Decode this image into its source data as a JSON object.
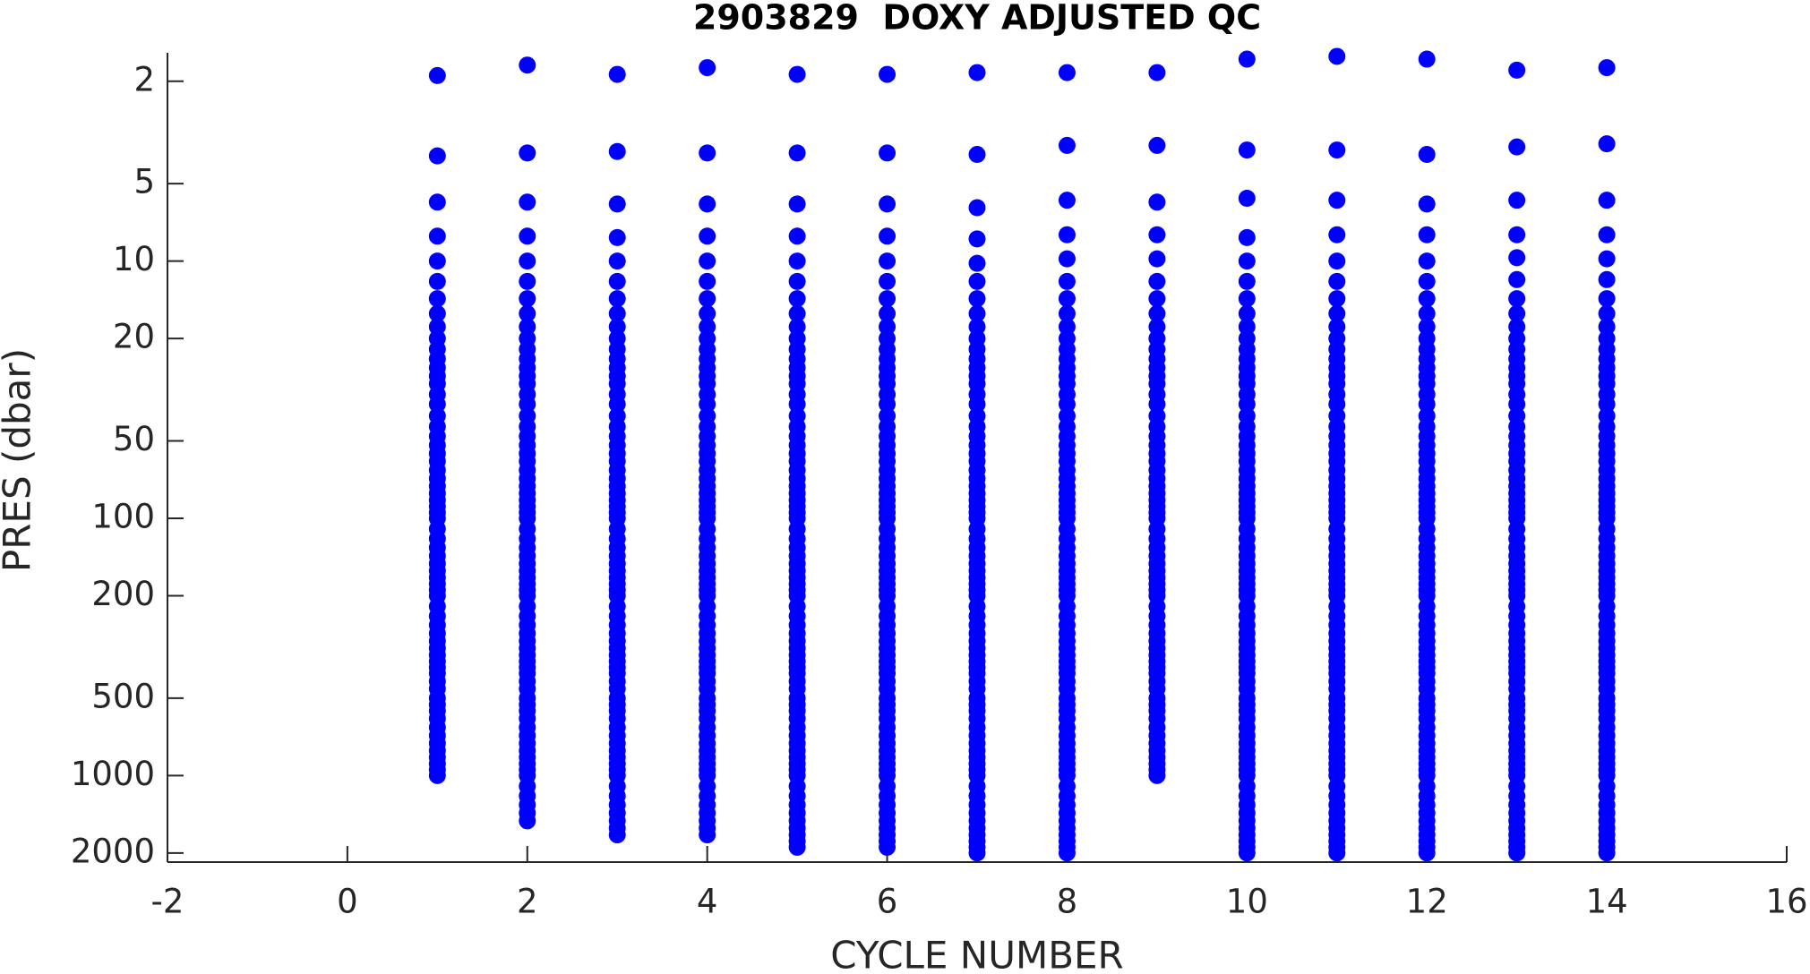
{
  "chart_data": {
    "type": "scatter",
    "title": "2903829  DOXY ADJUSTED QC",
    "x_label": "CYCLE NUMBER",
    "y_label": "PRES (dbar)",
    "color": "#0000ff",
    "xlim": [
      -2,
      16
    ],
    "xticks": [
      -2,
      0,
      2,
      4,
      6,
      8,
      10,
      12,
      14,
      16
    ],
    "ylim": [
      1.55,
      2170
    ],
    "yticks": [
      2,
      5,
      10,
      20,
      50,
      100,
      200,
      500,
      1000,
      2000
    ],
    "y_log": true,
    "y_reversed": true,
    "series": [
      {
        "cycle": 1,
        "values": [
          1.9,
          3.9,
          5.9,
          8,
          10,
          12,
          14,
          16,
          18,
          20,
          22,
          24,
          26,
          28,
          30,
          33,
          36,
          40,
          44,
          48,
          52,
          56,
          60,
          65,
          70,
          75,
          80,
          85,
          90,
          95,
          100,
          110,
          120,
          130,
          140,
          150,
          160,
          170,
          180,
          190,
          200,
          220,
          240,
          260,
          280,
          300,
          320,
          340,
          360,
          380,
          400,
          430,
          460,
          500,
          530,
          560,
          600,
          650,
          700,
          750,
          800,
          850,
          900,
          950,
          1000
        ]
      },
      {
        "cycle": 2,
        "values": [
          1.73,
          3.8,
          5.9,
          8,
          10,
          12,
          14,
          16,
          18,
          20,
          22,
          24,
          26,
          28,
          30,
          33,
          36,
          40,
          44,
          48,
          52,
          56,
          60,
          65,
          70,
          75,
          80,
          85,
          90,
          95,
          100,
          110,
          120,
          130,
          140,
          150,
          160,
          170,
          180,
          190,
          200,
          220,
          240,
          260,
          280,
          300,
          320,
          340,
          360,
          380,
          400,
          430,
          460,
          500,
          530,
          560,
          600,
          650,
          700,
          750,
          800,
          850,
          900,
          950,
          1000,
          1100,
          1200,
          1300,
          1400,
          1500
        ]
      },
      {
        "cycle": 3,
        "values": [
          1.88,
          3.75,
          6,
          8.1,
          10,
          12,
          14,
          16,
          18,
          20,
          22,
          24,
          26,
          28,
          30,
          33,
          36,
          40,
          44,
          48,
          52,
          56,
          60,
          65,
          70,
          75,
          80,
          85,
          90,
          95,
          100,
          110,
          120,
          130,
          140,
          150,
          160,
          170,
          180,
          190,
          200,
          220,
          240,
          260,
          280,
          300,
          320,
          340,
          360,
          380,
          400,
          430,
          460,
          500,
          530,
          560,
          600,
          650,
          700,
          750,
          800,
          850,
          900,
          950,
          1000,
          1100,
          1200,
          1300,
          1400,
          1500,
          1600,
          1700
        ]
      },
      {
        "cycle": 4,
        "values": [
          1.77,
          3.8,
          6,
          8,
          10,
          12,
          14,
          16,
          18,
          20,
          22,
          24,
          26,
          28,
          30,
          33,
          36,
          40,
          44,
          48,
          52,
          56,
          60,
          65,
          70,
          75,
          80,
          85,
          90,
          95,
          100,
          110,
          120,
          130,
          140,
          150,
          160,
          170,
          180,
          190,
          200,
          220,
          240,
          260,
          280,
          300,
          320,
          340,
          360,
          380,
          400,
          430,
          460,
          500,
          530,
          560,
          600,
          650,
          700,
          750,
          800,
          850,
          900,
          950,
          1000,
          1100,
          1200,
          1300,
          1400,
          1500,
          1600,
          1700
        ]
      },
      {
        "cycle": 5,
        "values": [
          1.88,
          3.8,
          6,
          8,
          10,
          12,
          14,
          16,
          18,
          20,
          22,
          24,
          26,
          28,
          30,
          33,
          36,
          40,
          44,
          48,
          52,
          56,
          60,
          65,
          70,
          75,
          80,
          85,
          90,
          95,
          100,
          110,
          120,
          130,
          140,
          150,
          160,
          170,
          180,
          190,
          200,
          220,
          240,
          260,
          280,
          300,
          320,
          340,
          360,
          380,
          400,
          430,
          460,
          500,
          530,
          560,
          600,
          650,
          700,
          750,
          800,
          850,
          900,
          950,
          1000,
          1100,
          1200,
          1300,
          1400,
          1500,
          1600,
          1700,
          1800,
          1900
        ]
      },
      {
        "cycle": 6,
        "values": [
          1.88,
          3.8,
          6,
          8,
          10,
          12,
          14,
          16,
          18,
          20,
          22,
          24,
          26,
          28,
          30,
          33,
          36,
          40,
          44,
          48,
          52,
          56,
          60,
          65,
          70,
          75,
          80,
          85,
          90,
          95,
          100,
          110,
          120,
          130,
          140,
          150,
          160,
          170,
          180,
          190,
          200,
          220,
          240,
          260,
          280,
          300,
          320,
          340,
          360,
          380,
          400,
          430,
          460,
          500,
          530,
          560,
          600,
          650,
          700,
          750,
          800,
          850,
          900,
          950,
          1000,
          1100,
          1200,
          1300,
          1400,
          1500,
          1600,
          1700,
          1800,
          1900
        ]
      },
      {
        "cycle": 7,
        "values": [
          1.85,
          3.85,
          6.2,
          8.2,
          10.2,
          12,
          14,
          16,
          18,
          20,
          22,
          24,
          26,
          28,
          30,
          33,
          36,
          40,
          44,
          48,
          52,
          56,
          60,
          65,
          70,
          75,
          80,
          85,
          90,
          95,
          100,
          110,
          120,
          130,
          140,
          150,
          160,
          170,
          180,
          190,
          200,
          220,
          240,
          260,
          280,
          300,
          320,
          340,
          360,
          380,
          400,
          430,
          460,
          500,
          530,
          560,
          600,
          650,
          700,
          750,
          800,
          850,
          900,
          950,
          1000,
          1100,
          1200,
          1300,
          1400,
          1500,
          1600,
          1700,
          1800,
          1900,
          2000
        ]
      },
      {
        "cycle": 8,
        "values": [
          1.85,
          3.55,
          5.8,
          7.9,
          9.8,
          12,
          14,
          16,
          18,
          20,
          22,
          24,
          26,
          28,
          30,
          33,
          36,
          40,
          44,
          48,
          52,
          56,
          60,
          65,
          70,
          75,
          80,
          85,
          90,
          95,
          100,
          110,
          120,
          130,
          140,
          150,
          160,
          170,
          180,
          190,
          200,
          220,
          240,
          260,
          280,
          300,
          320,
          340,
          360,
          380,
          400,
          430,
          460,
          500,
          530,
          560,
          600,
          650,
          700,
          750,
          800,
          850,
          900,
          950,
          1000,
          1100,
          1200,
          1300,
          1400,
          1500,
          1600,
          1700,
          1800,
          1900,
          2000
        ]
      },
      {
        "cycle": 9,
        "values": [
          1.85,
          3.55,
          5.9,
          7.9,
          9.8,
          12,
          14,
          16,
          18,
          20,
          22,
          24,
          26,
          28,
          30,
          33,
          36,
          40,
          44,
          48,
          52,
          56,
          60,
          65,
          70,
          75,
          80,
          85,
          90,
          95,
          100,
          110,
          120,
          130,
          140,
          150,
          160,
          170,
          180,
          190,
          200,
          220,
          240,
          260,
          280,
          300,
          320,
          340,
          360,
          380,
          400,
          430,
          460,
          500,
          530,
          560,
          600,
          650,
          700,
          750,
          800,
          850,
          900,
          950,
          1000
        ]
      },
      {
        "cycle": 10,
        "values": [
          1.64,
          3.7,
          5.7,
          8.1,
          10,
          12,
          14,
          16,
          18,
          20,
          22,
          24,
          26,
          28,
          30,
          33,
          36,
          40,
          44,
          48,
          52,
          56,
          60,
          65,
          70,
          75,
          80,
          85,
          90,
          95,
          100,
          110,
          120,
          130,
          140,
          150,
          160,
          170,
          180,
          190,
          200,
          220,
          240,
          260,
          280,
          300,
          320,
          340,
          360,
          380,
          400,
          430,
          460,
          500,
          530,
          560,
          600,
          650,
          700,
          750,
          800,
          850,
          900,
          950,
          1000,
          1100,
          1200,
          1300,
          1400,
          1500,
          1600,
          1700,
          1800,
          1900,
          2000
        ]
      },
      {
        "cycle": 11,
        "values": [
          1.6,
          3.7,
          5.8,
          7.9,
          10,
          12,
          14,
          16,
          18,
          20,
          22,
          24,
          26,
          28,
          30,
          33,
          36,
          40,
          44,
          48,
          52,
          56,
          60,
          65,
          70,
          75,
          80,
          85,
          90,
          95,
          100,
          110,
          120,
          130,
          140,
          150,
          160,
          170,
          180,
          190,
          200,
          220,
          240,
          260,
          280,
          300,
          320,
          340,
          360,
          380,
          400,
          430,
          460,
          500,
          530,
          560,
          600,
          650,
          700,
          750,
          800,
          850,
          900,
          950,
          1000,
          1100,
          1200,
          1300,
          1400,
          1500,
          1600,
          1700,
          1800,
          1900,
          2000
        ]
      },
      {
        "cycle": 12,
        "values": [
          1.64,
          3.85,
          6,
          7.9,
          10,
          12,
          14,
          16,
          18,
          20,
          22,
          24,
          26,
          28,
          30,
          33,
          36,
          40,
          44,
          48,
          52,
          56,
          60,
          65,
          70,
          75,
          80,
          85,
          90,
          95,
          100,
          110,
          120,
          130,
          140,
          150,
          160,
          170,
          180,
          190,
          200,
          220,
          240,
          260,
          280,
          300,
          320,
          340,
          360,
          380,
          400,
          430,
          460,
          500,
          530,
          560,
          600,
          650,
          700,
          750,
          800,
          850,
          900,
          950,
          1000,
          1100,
          1200,
          1300,
          1400,
          1500,
          1600,
          1700,
          1800,
          1900,
          2000
        ]
      },
      {
        "cycle": 13,
        "values": [
          1.81,
          3.6,
          5.8,
          7.9,
          9.7,
          11.8,
          14,
          16,
          18,
          20,
          22,
          24,
          26,
          28,
          30,
          33,
          36,
          40,
          44,
          48,
          52,
          56,
          60,
          65,
          70,
          75,
          80,
          85,
          90,
          95,
          100,
          110,
          120,
          130,
          140,
          150,
          160,
          170,
          180,
          190,
          200,
          220,
          240,
          260,
          280,
          300,
          320,
          340,
          360,
          380,
          400,
          430,
          460,
          500,
          530,
          560,
          600,
          650,
          700,
          750,
          800,
          850,
          900,
          950,
          1000,
          1100,
          1200,
          1300,
          1400,
          1500,
          1600,
          1700,
          1800,
          1900,
          2000
        ]
      },
      {
        "cycle": 14,
        "values": [
          1.77,
          3.5,
          5.8,
          7.9,
          9.8,
          11.8,
          14,
          16,
          18,
          20,
          22,
          24,
          26,
          28,
          30,
          33,
          36,
          40,
          44,
          48,
          52,
          56,
          60,
          65,
          70,
          75,
          80,
          85,
          90,
          95,
          100,
          110,
          120,
          130,
          140,
          150,
          160,
          170,
          180,
          190,
          200,
          220,
          240,
          260,
          280,
          300,
          320,
          340,
          360,
          380,
          400,
          430,
          460,
          500,
          530,
          560,
          600,
          650,
          700,
          750,
          800,
          850,
          900,
          950,
          1000,
          1100,
          1200,
          1300,
          1400,
          1500,
          1600,
          1700,
          1800,
          1900,
          2000
        ]
      }
    ]
  }
}
